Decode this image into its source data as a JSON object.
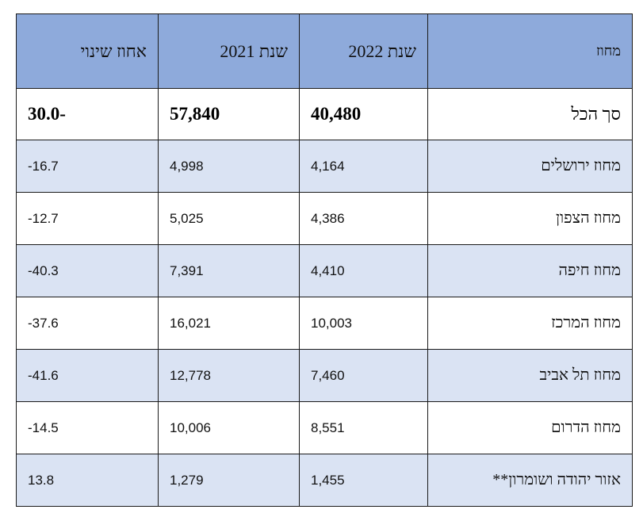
{
  "table": {
    "headers": {
      "district": "מחוז",
      "year_2022": "שנת 2022",
      "year_2021": "שנת 2021",
      "pct_change": "אחוז שינוי"
    },
    "total": {
      "district": "סך הכל",
      "year_2022": "40,480",
      "year_2021": "57,840",
      "pct_change": "-30.0"
    },
    "rows": [
      {
        "district": "מחוז ירושלים",
        "year_2022": "4,164",
        "year_2021": "4,998",
        "pct_change": "16.7-"
      },
      {
        "district": "מחוז הצפון",
        "year_2022": "4,386",
        "year_2021": "5,025",
        "pct_change": "12.7-"
      },
      {
        "district": "מחוז חיפה",
        "year_2022": "4,410",
        "year_2021": "7,391",
        "pct_change": "40.3-"
      },
      {
        "district": "מחוז המרכז",
        "year_2022": "10,003",
        "year_2021": "16,021",
        "pct_change": "37.6-"
      },
      {
        "district": "מחוז תל אביב",
        "year_2022": "7,460",
        "year_2021": "12,778",
        "pct_change": "41.6-"
      },
      {
        "district": "מחוז הדרום",
        "year_2022": "8,551",
        "year_2021": "10,006",
        "pct_change": "14.5-"
      },
      {
        "district": "אזור יהודה ושומרון**",
        "year_2022": "1,455",
        "year_2021": "1,279",
        "pct_change": "13.8"
      }
    ]
  },
  "colors": {
    "header_bg": "#8eaadb",
    "shaded_row_bg": "#dae3f3",
    "plain_row_bg": "#ffffff",
    "border": "#1a1a1a"
  }
}
